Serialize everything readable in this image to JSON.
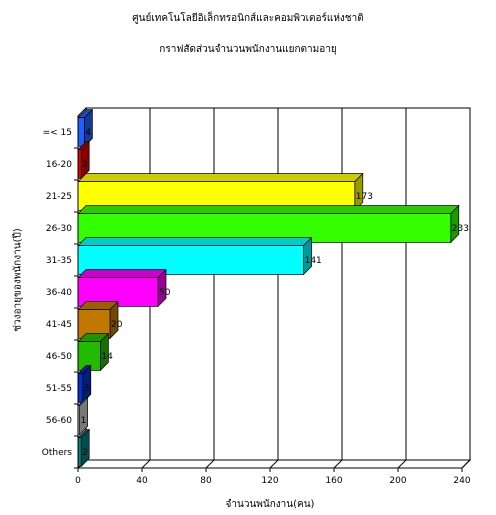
{
  "chart_data": {
    "type": "bar",
    "orientation": "horizontal",
    "style": "3d",
    "title": "ศูนย์เทคโนโลยีอิเล็กทรอนิกส์และคอมพิวเตอร์แห่งชาติ",
    "subtitle": "กราฟสัดส่วนจำนวนพนักงานแยกตามอายุ",
    "xlabel": "จำนวนพนักงาน(คน)",
    "ylabel": "ช่วงอายุของพนักงาน(ปี)",
    "xlim": [
      0,
      240
    ],
    "xticks": [
      0,
      40,
      80,
      120,
      160,
      200,
      240
    ],
    "categories": [
      "=< 15",
      "16-20",
      "21-25",
      "26-30",
      "31-35",
      "36-40",
      "41-45",
      "46-50",
      "51-55",
      "56-60",
      "Others"
    ],
    "values": [
      4,
      2,
      173,
      233,
      141,
      50,
      20,
      14,
      3,
      1,
      2
    ],
    "colors": [
      "#1f5fff",
      "#e00000",
      "#ffff00",
      "#33ff00",
      "#00ffff",
      "#ff00ff",
      "#c07800",
      "#22bb00",
      "#0030c8",
      "#c8c8c8",
      "#008080"
    ],
    "grid": true,
    "legend": "none"
  }
}
